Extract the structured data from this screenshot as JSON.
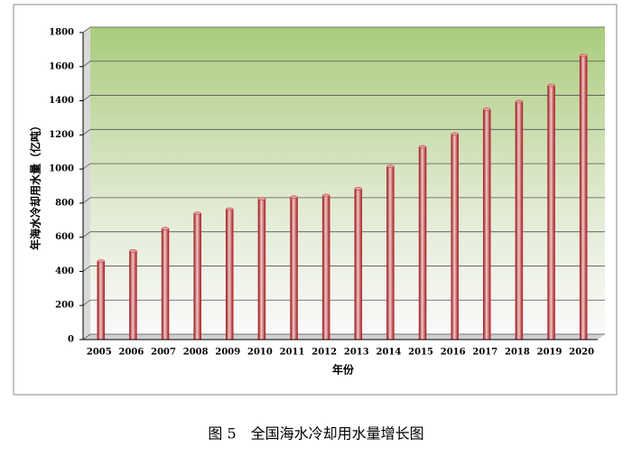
{
  "chart_data": {
    "type": "bar",
    "title": "图 5　全国海水冷却用水量增长图",
    "x_label": "年份",
    "y_label": "年海水冷却用水量（亿吨）",
    "categories": [
      "2005",
      "2006",
      "2007",
      "2008",
      "2009",
      "2010",
      "2011",
      "2012",
      "2013",
      "2014",
      "2015",
      "2016",
      "2017",
      "2018",
      "2019",
      "2020"
    ],
    "values": [
      460,
      520,
      650,
      740,
      765,
      825,
      835,
      845,
      885,
      1015,
      1130,
      1205,
      1350,
      1395,
      1490,
      1665
    ],
    "color": "#c0262c",
    "ylim": [
      0,
      1800
    ],
    "yticks": [
      0,
      200,
      400,
      600,
      800,
      1000,
      1200,
      1400,
      1600,
      1800
    ],
    "grid": true
  }
}
